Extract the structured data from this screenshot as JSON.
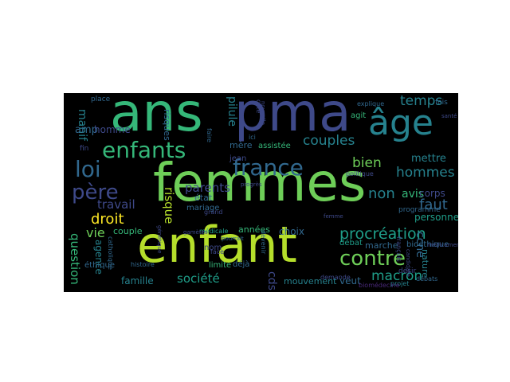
{
  "colors": {
    "background": "#000000",
    "page": "#ffffff",
    "palette": [
      "#fde725",
      "#b5de2b",
      "#6ece58",
      "#35b779",
      "#1f9e89",
      "#26828e",
      "#31688e",
      "#3e4989",
      "#482878",
      "#440154"
    ]
  },
  "words": [
    {
      "text": "femmes",
      "color": "#6ece58"
    },
    {
      "text": "enfant",
      "color": "#b5de2b"
    },
    {
      "text": "ans",
      "color": "#35b779"
    },
    {
      "text": "pma",
      "color": "#3e4989"
    },
    {
      "text": "âge",
      "color": "#26828e"
    },
    {
      "text": "enfants",
      "color": "#35b779"
    },
    {
      "text": "france",
      "color": "#31688e"
    },
    {
      "text": "loi",
      "color": "#31688e"
    },
    {
      "text": "père",
      "color": "#3e4989"
    },
    {
      "text": "contre",
      "color": "#6ece58"
    },
    {
      "text": "procréation",
      "color": "#1f9e89"
    },
    {
      "text": "couples",
      "color": "#26828e"
    },
    {
      "text": "temps",
      "color": "#26828e"
    },
    {
      "text": "bien",
      "color": "#6ece58"
    },
    {
      "text": "hommes",
      "color": "#26828e"
    },
    {
      "text": "faut",
      "color": "#31688e"
    },
    {
      "text": "droit",
      "color": "#fde725"
    },
    {
      "text": "parents",
      "color": "#3e4989"
    },
    {
      "text": "avis",
      "color": "#35b779"
    },
    {
      "text": "macron",
      "color": "#1f9e89"
    },
    {
      "text": "question",
      "color": "#35b779"
    },
    {
      "text": "vie",
      "color": "#6ece58"
    },
    {
      "text": "travail",
      "color": "#3e4989"
    },
    {
      "text": "société",
      "color": "#1f9e89"
    },
    {
      "text": "pilule",
      "color": "#26828e"
    },
    {
      "text": "risque",
      "color": "#b5de2b"
    },
    {
      "text": "manif",
      "color": "#26828e"
    },
    {
      "text": "non",
      "color": "#26828e"
    },
    {
      "text": "ccne",
      "color": "#31688e"
    },
    {
      "text": "mettre",
      "color": "#26828e"
    },
    {
      "text": "personnes",
      "color": "#1f9e89"
    },
    {
      "text": "agence",
      "color": "#26828e"
    },
    {
      "text": "amp",
      "color": "#31688e"
    },
    {
      "text": "mouvement",
      "color": "#26828e"
    },
    {
      "text": "cds",
      "color": "#3e4989"
    },
    {
      "text": "famille",
      "color": "#26828e"
    },
    {
      "text": "couple",
      "color": "#35b779"
    },
    {
      "text": "veut",
      "color": "#31688e"
    },
    {
      "text": "nature",
      "color": "#26828e"
    },
    {
      "text": "choix",
      "color": "#31688e"
    },
    {
      "text": "années",
      "color": "#35b779"
    },
    {
      "text": "risques",
      "color": "#31688e"
    },
    {
      "text": "homme",
      "color": "#3e4989"
    },
    {
      "text": "mariage",
      "color": "#31688e"
    },
    {
      "text": "état",
      "color": "#31688e"
    },
    {
      "text": "mère",
      "color": "#31688e"
    },
    {
      "text": "débat",
      "color": "#1f9e89"
    },
    {
      "text": "nom",
      "color": "#3e4989"
    },
    {
      "text": "marche",
      "color": "#31688e"
    },
    {
      "text": "corps",
      "color": "#3e4989"
    },
    {
      "text": "éthique",
      "color": "#31688e"
    },
    {
      "text": "assistée",
      "color": "#35b779"
    },
    {
      "text": "limite",
      "color": "#35b779"
    },
    {
      "text": "bioéthique",
      "color": "#31688e"
    },
    {
      "text": "programme",
      "color": "#31688e"
    },
    {
      "text": "médicale",
      "color": "#1f9e89"
    },
    {
      "text": "catholique",
      "color": "#31688e"
    },
    {
      "text": "devenir",
      "color": "#31688e"
    },
    {
      "text": "déjà",
      "color": "#31688e"
    },
    {
      "text": "fin",
      "color": "#3e4989"
    },
    {
      "text": "place",
      "color": "#31688e"
    },
    {
      "text": "agit",
      "color": "#35b779"
    },
    {
      "text": "histoire",
      "color": "#31688e"
    },
    {
      "text": "projet",
      "color": "#26828e"
    },
    {
      "text": "désir",
      "color": "#3e4989"
    },
    {
      "text": "débats",
      "color": "#31688e"
    },
    {
      "text": "explique",
      "color": "#31688e"
    },
    {
      "text": "fois",
      "color": "#31688e"
    },
    {
      "text": "jean",
      "color": "#3e4989"
    },
    {
      "text": "politique",
      "color": "#3e4989"
    },
    {
      "text": "grand",
      "color": "#3e4989"
    },
    {
      "text": "biomédecine",
      "color": "#482878"
    },
    {
      "text": "côté",
      "color": "#3e4989"
    },
    {
      "text": "faire",
      "color": "#31688e"
    },
    {
      "text": "ici",
      "color": "#31688e"
    },
    {
      "text": "face",
      "color": "#3e4989"
    },
    {
      "text": "santé",
      "color": "#3e4989"
    },
    {
      "text": "demande",
      "color": "#3e4989"
    },
    {
      "text": "candidate",
      "color": "#3e4989"
    },
    {
      "text": "médicament",
      "color": "#3e4989"
    },
    {
      "text": "génétique",
      "color": "#3e4989"
    },
    {
      "text": "nouvelle",
      "color": "#3e4989"
    },
    {
      "text": "gamètes",
      "color": "#3e4989"
    },
    {
      "text": "progrès",
      "color": "#3e4989"
    },
    {
      "text": "français",
      "color": "#3e4989"
    },
    {
      "text": "femme",
      "color": "#3e4989"
    },
    {
      "text": "pourrait",
      "color": "#31688e"
    }
  ]
}
